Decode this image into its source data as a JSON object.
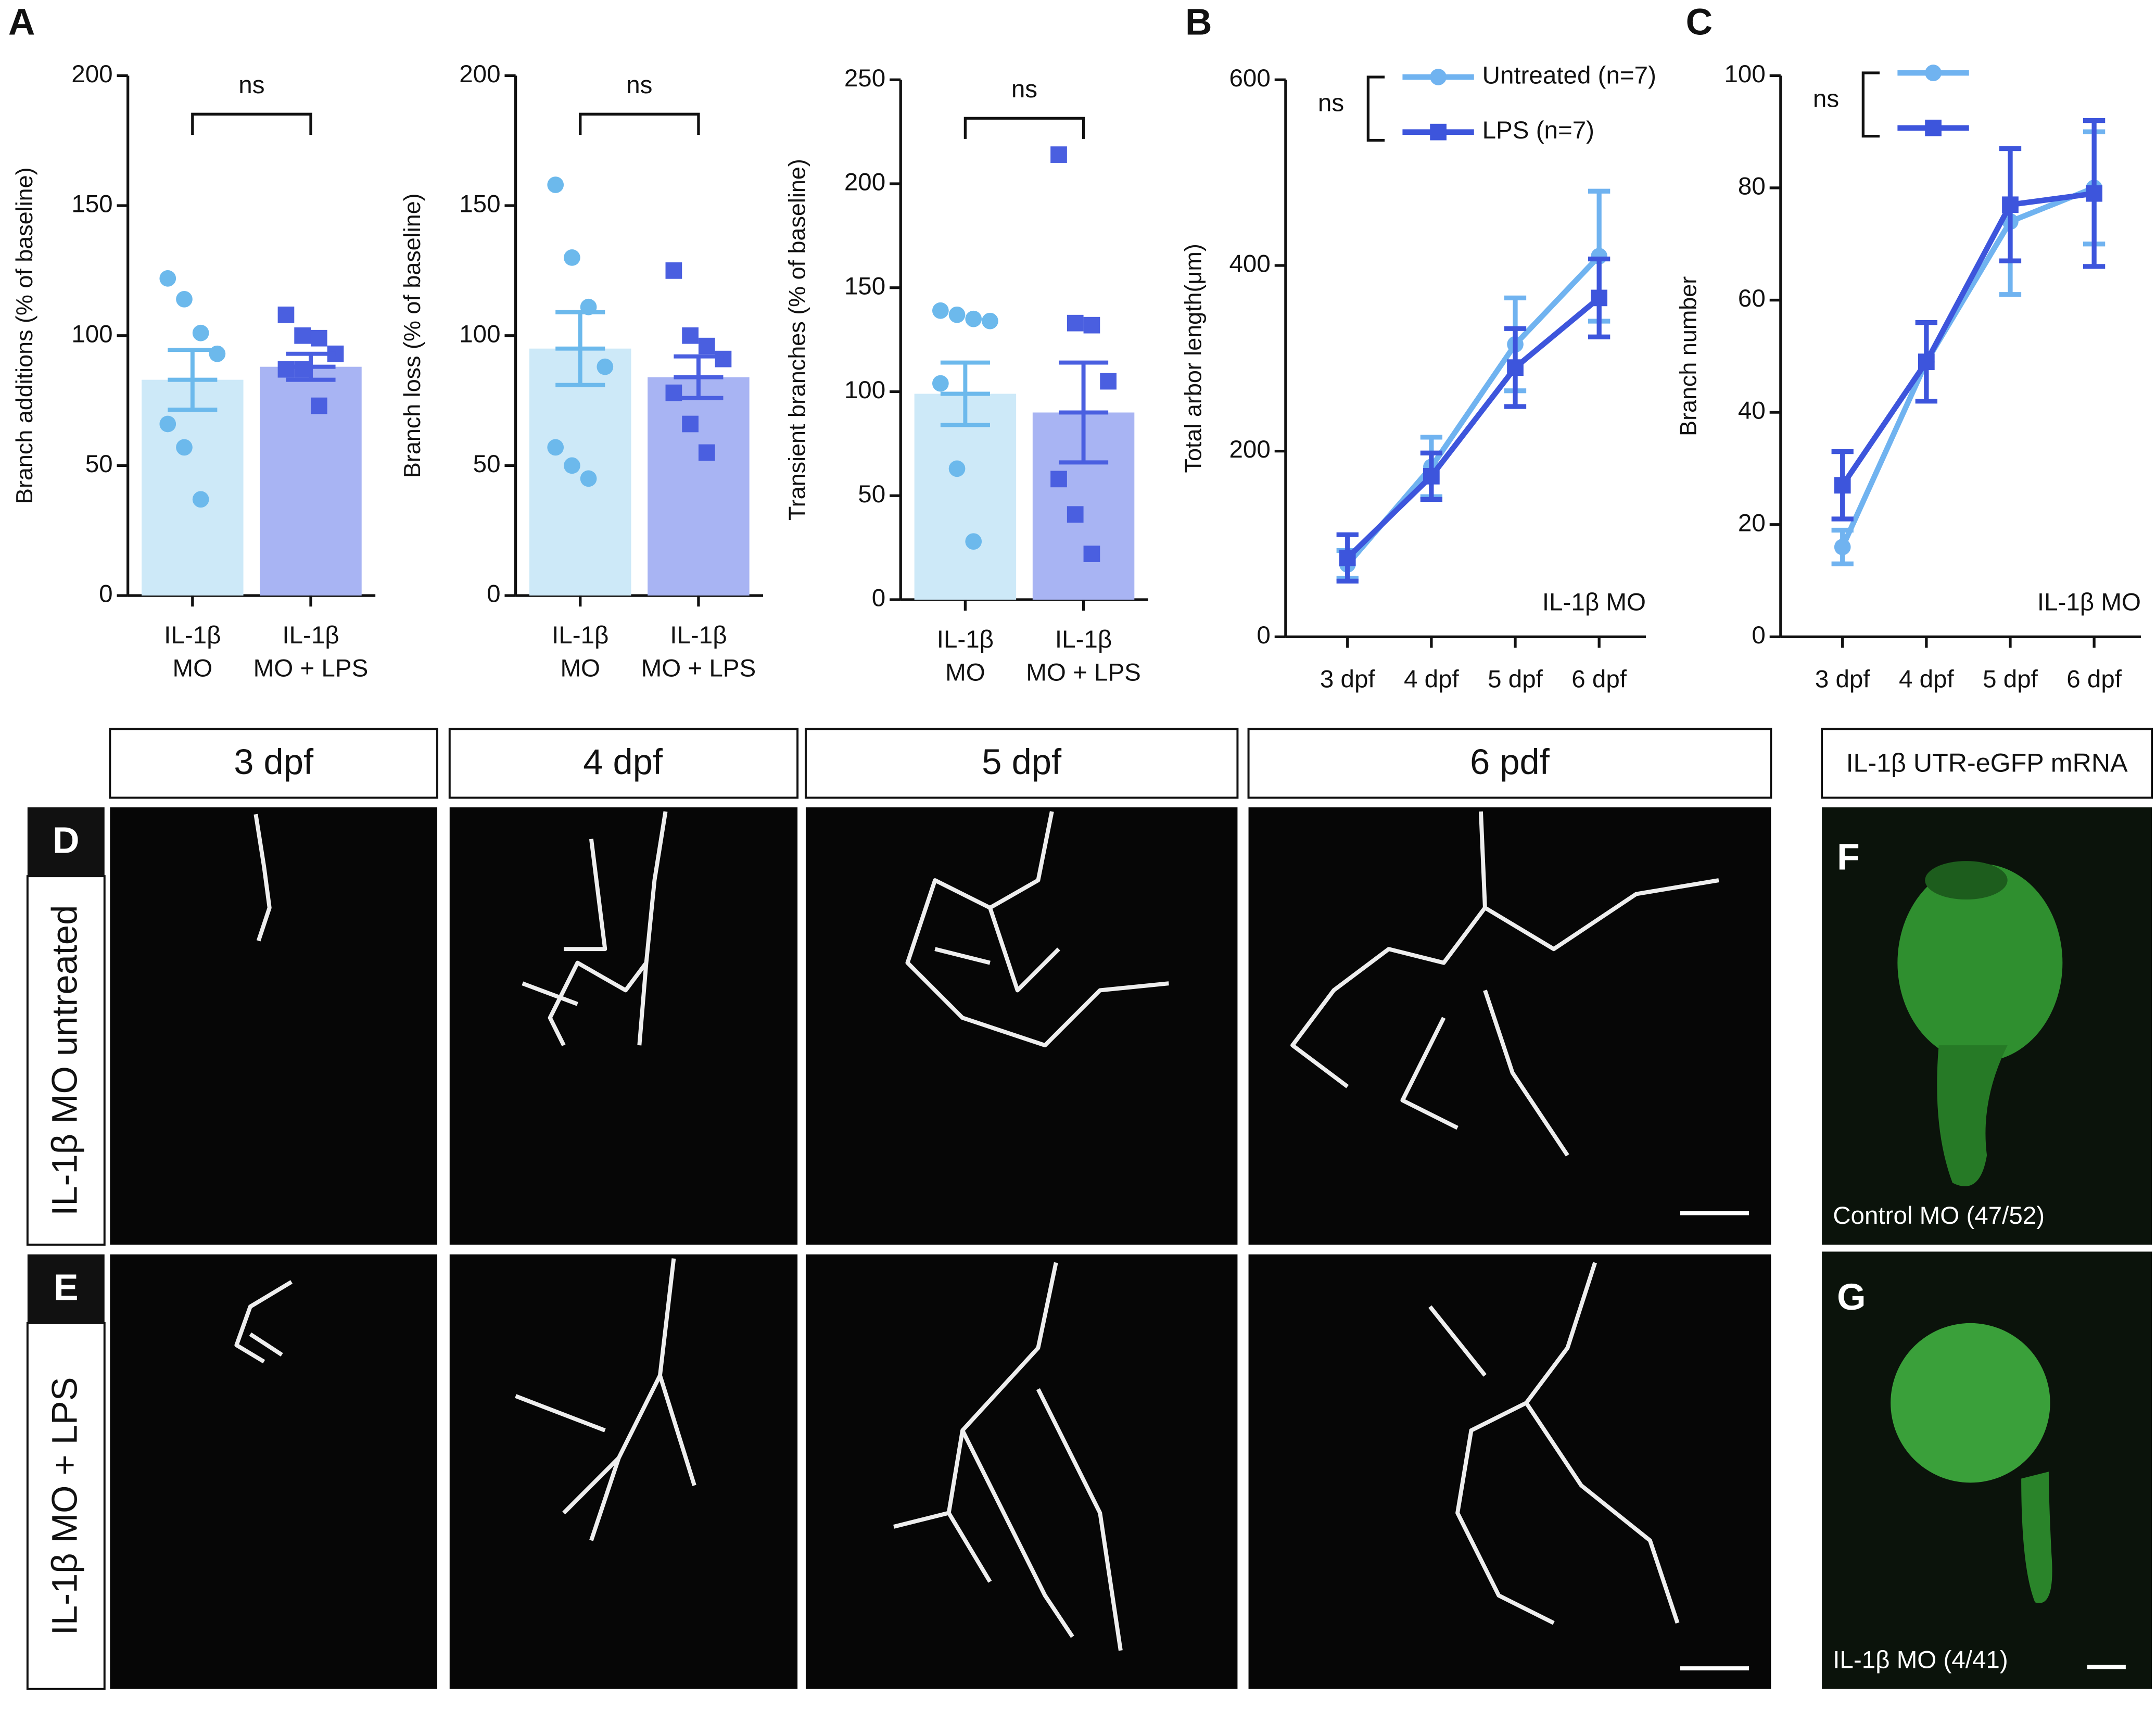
{
  "chart_data": [
    {
      "type": "bar",
      "ylabel": "Branch additions (% of baseline)",
      "annotation": "ns",
      "categories": [
        [
          "IL-1β",
          "MO"
        ],
        [
          "IL-1β",
          "MO + LPS"
        ]
      ],
      "values": [
        83,
        88
      ],
      "errors": [
        11.5,
        5
      ],
      "colors": [
        "#cde9f8",
        "#a8b4f3"
      ],
      "point_colors": [
        "#6cb9ec",
        "#4a5fe0"
      ],
      "markers": [
        "circle",
        "square"
      ],
      "points": [
        [
          122,
          114,
          101,
          93,
          66,
          57,
          37
        ],
        [
          108,
          100,
          99,
          93,
          87,
          87,
          73
        ]
      ],
      "ylim": [
        0,
        200
      ],
      "yticks": [
        0,
        50,
        100,
        150,
        200
      ]
    },
    {
      "type": "bar",
      "ylabel": "Branch loss (% of baseline)",
      "annotation": "ns",
      "categories": [
        [
          "IL-1β",
          "MO"
        ],
        [
          "IL-1β",
          "MO + LPS"
        ]
      ],
      "values": [
        95,
        84
      ],
      "errors": [
        14,
        8
      ],
      "colors": [
        "#cde9f8",
        "#a8b4f3"
      ],
      "point_colors": [
        "#6cb9ec",
        "#4a5fe0"
      ],
      "markers": [
        "circle",
        "square"
      ],
      "points": [
        [
          158,
          130,
          111,
          88,
          57,
          50,
          45
        ],
        [
          125,
          100,
          96,
          91,
          78,
          66,
          55
        ]
      ],
      "ylim": [
        0,
        200
      ],
      "yticks": [
        0,
        50,
        100,
        150,
        200
      ]
    },
    {
      "type": "bar",
      "ylabel": "Transient branches (% of baseline)",
      "annotation": "ns",
      "categories": [
        [
          "IL-1β",
          "MO"
        ],
        [
          "IL-1β",
          "MO + LPS"
        ]
      ],
      "values": [
        99,
        90
      ],
      "errors": [
        15,
        24
      ],
      "colors": [
        "#cde9f8",
        "#a8b4f3"
      ],
      "point_colors": [
        "#6cb9ec",
        "#4a5fe0"
      ],
      "markers": [
        "circle",
        "square"
      ],
      "points": [
        [
          139,
          137,
          135,
          134,
          104,
          63,
          28
        ],
        [
          214,
          133,
          132,
          105,
          58,
          41,
          22
        ]
      ],
      "ylim": [
        0,
        250
      ],
      "yticks": [
        0,
        50,
        100,
        150,
        200,
        250
      ]
    },
    {
      "type": "line",
      "ylabel": "Total arbor length(μm)",
      "annotation": "IL-1β MO",
      "significance": "ns",
      "categories": [
        "3 dpf",
        "4 dpf",
        "5 dpf",
        "6 dpf"
      ],
      "series": [
        {
          "name": "Untreated (n=7)",
          "color": "#70b3f0",
          "marker": "circle",
          "values": [
            78,
            183,
            315,
            410
          ],
          "errors": [
            15,
            32,
            50,
            70
          ]
        },
        {
          "name": "LPS (n=7)",
          "color": "#3d55dc",
          "marker": "square",
          "values": [
            85,
            173,
            290,
            365
          ],
          "errors": [
            25,
            25,
            42,
            42
          ]
        }
      ],
      "ylim": [
        0,
        600
      ],
      "yticks": [
        0,
        200,
        400,
        600
      ]
    },
    {
      "type": "line",
      "ylabel": "Branch number",
      "annotation": "IL-1β MO",
      "significance": "ns",
      "categories": [
        "3 dpf",
        "4 dpf",
        "5 dpf",
        "6 dpf"
      ],
      "series": [
        {
          "color": "#70b3f0",
          "marker": "circle",
          "values": [
            16,
            49,
            74,
            80
          ],
          "errors": [
            3,
            7,
            13,
            10
          ]
        },
        {
          "color": "#3d55dc",
          "marker": "square",
          "values": [
            27,
            49,
            77,
            79
          ],
          "errors": [
            6,
            7,
            10,
            13
          ]
        }
      ],
      "ylim": [
        0,
        100
      ],
      "yticks": [
        0,
        20,
        40,
        60,
        80,
        100
      ]
    }
  ],
  "figure": {
    "panel_labels": [
      "A",
      "B",
      "C",
      "D",
      "E",
      "F",
      "G"
    ],
    "columns": [
      "3 dpf",
      "4 dpf",
      "5 dpf",
      "6 pdf"
    ],
    "rows": [
      "IL-1β MO untreated",
      "IL-1β MO + LPS"
    ],
    "inset_title": "IL-1β UTR-eGFP mRNA",
    "captions": [
      "Control MO (47/52)",
      "IL-1β MO (4/41)"
    ]
  }
}
